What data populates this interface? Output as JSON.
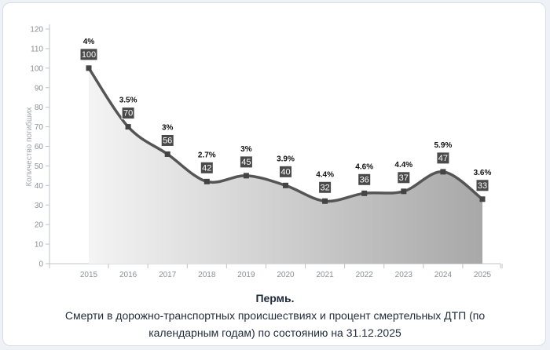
{
  "chart_data": {
    "type": "area",
    "title": "Пермь.",
    "subtitle_line1": "Смерти в дорожно-транспортных происшествиях и процент смертельных ДТП (по",
    "subtitle_line2": "календарным годам) по состоянию на 31.12.2025",
    "ylabel": "Количество погибших",
    "xlabel": "",
    "ylim": [
      0,
      120
    ],
    "yticks": [
      0,
      10,
      20,
      30,
      40,
      50,
      60,
      70,
      80,
      90,
      100,
      110,
      120
    ],
    "x": [
      "2015",
      "2016",
      "2017",
      "2018",
      "2019",
      "2020",
      "2021",
      "2022",
      "2023",
      "2024",
      "2025"
    ],
    "series": [
      {
        "values": [
          100,
          70,
          56,
          42,
          45,
          40,
          32,
          36,
          37,
          47,
          33
        ],
        "percent_labels": [
          "4%",
          "3.5%",
          "3%",
          "2.7%",
          "3%",
          "3.9%",
          "4.4%",
          "4.6%",
          "4.4%",
          "5.9%",
          "3.6%"
        ]
      }
    ],
    "grid": false,
    "colors": {
      "line": "#555555",
      "marker": "#444444",
      "label_box": "#4a4a4a",
      "area_top": "#f2f2f2",
      "area_bottom": "#a9a9a9"
    }
  }
}
